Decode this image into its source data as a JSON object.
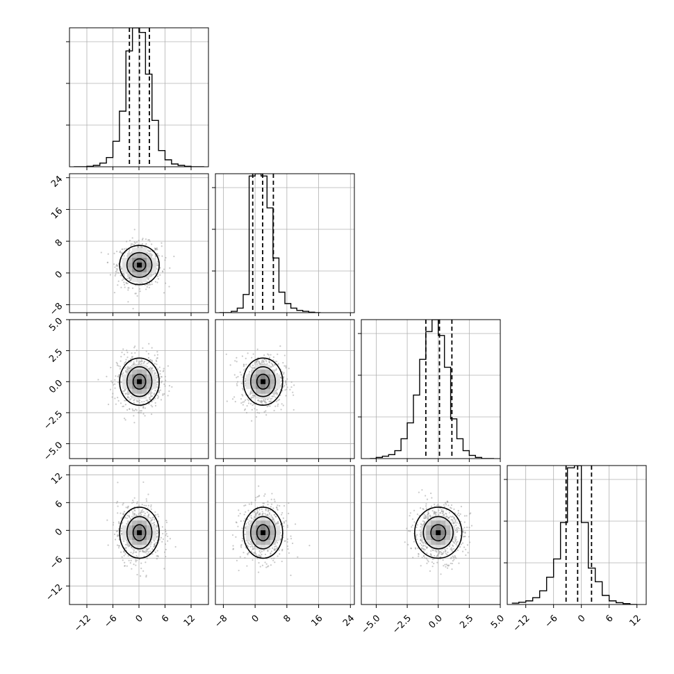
{
  "chart_data": {
    "type": "corner",
    "description_free": true,
    "style": {
      "frame_color": "#000000",
      "grid_color": "#b0b0b0",
      "hist_color": "#000000",
      "point_color": "#9a9a9a",
      "contour_color": "#000000"
    },
    "parameters": [
      {
        "range": [
          -16,
          16
        ],
        "ticks": [
          -12,
          -6,
          0,
          6,
          12
        ],
        "tick_labels": [
          "−12",
          "−6",
          "0",
          "6",
          "12"
        ],
        "quantiles": [
          -2.2,
          0.1,
          2.4
        ],
        "center": 0.1,
        "spread": 2.4,
        "hist": {
          "bins": [
            -15,
            -13.5,
            -12,
            -10.5,
            -9,
            -7.5,
            -6,
            -4.5,
            -3,
            -1.5,
            0,
            1.5,
            3,
            4.5,
            6,
            7.5,
            9,
            10.5,
            12,
            13.5,
            15
          ],
          "counts": [
            0,
            0,
            1,
            3,
            8,
            20,
            55,
            120,
            250,
            300,
            290,
            200,
            100,
            35,
            15,
            6,
            3,
            1,
            0,
            0
          ]
        }
      },
      {
        "range": [
          -10,
          25
        ],
        "ticks": [
          -8,
          0,
          8,
          16,
          24
        ],
        "tick_labels": [
          "−8",
          "0",
          "8",
          "16",
          "24"
        ],
        "quantiles": [
          -0.6,
          1.9,
          4.6
        ],
        "center": 2,
        "spread": 2.6,
        "hist": {
          "bins": [
            -9,
            -7.5,
            -6,
            -4.5,
            -3,
            -1.5,
            0,
            1.5,
            3,
            4.5,
            6,
            7.5,
            9,
            10.5,
            12,
            13.5,
            15,
            16.5
          ],
          "counts": [
            0,
            0,
            3,
            10,
            40,
            300,
            305,
            300,
            230,
            120,
            45,
            20,
            10,
            5,
            3,
            1,
            0
          ]
        }
      },
      {
        "range": [
          -6.2,
          5
        ],
        "ticks": [
          -5,
          -2.5,
          0,
          2.5,
          5
        ],
        "tick_labels": [
          "−5.0",
          "−2.5",
          "0.0",
          "2.5",
          "5.0"
        ],
        "quantiles": [
          -1.0,
          0.1,
          1.1
        ],
        "center": 0,
        "spread": 1.0,
        "hist": {
          "bins": [
            -5.5,
            -5,
            -4.5,
            -4,
            -3.5,
            -3,
            -2.5,
            -2,
            -1.5,
            -1,
            -0.5,
            0,
            0.5,
            1,
            1.5,
            2,
            2.5,
            3,
            3.5,
            4,
            4.5
          ],
          "counts": [
            0,
            3,
            6,
            10,
            20,
            50,
            90,
            160,
            250,
            320,
            350,
            310,
            230,
            100,
            50,
            20,
            8,
            3,
            0,
            0
          ]
        }
      },
      {
        "range": [
          -16,
          14
        ],
        "ticks": [
          -12,
          -6,
          0,
          6,
          12
        ],
        "tick_labels": [
          "−12",
          "−6",
          "0",
          "6",
          "12"
        ],
        "quantiles": [
          -3.3,
          -0.8,
          2.2
        ],
        "center": -0.5,
        "spread": 2.9,
        "hist": {
          "bins": [
            -15,
            -13.5,
            -12,
            -10.5,
            -9,
            -7.5,
            -6,
            -4.5,
            -3,
            -1.5,
            0,
            1.5,
            3,
            4.5,
            6,
            7.5,
            9,
            10.5,
            12
          ],
          "counts": [
            3,
            5,
            8,
            15,
            30,
            60,
            100,
            180,
            300,
            305,
            180,
            80,
            50,
            20,
            8,
            4,
            2,
            0
          ]
        }
      }
    ]
  }
}
